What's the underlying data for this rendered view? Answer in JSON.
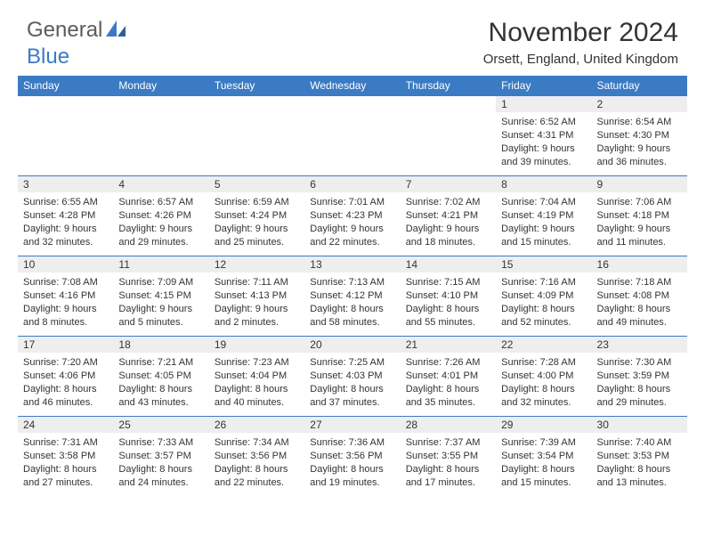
{
  "brand": {
    "part1": "General",
    "part2": "Blue"
  },
  "accent_color": "#3b7bc4",
  "title": "November 2024",
  "location": "Orsett, England, United Kingdom",
  "day_headers": [
    "Sunday",
    "Monday",
    "Tuesday",
    "Wednesday",
    "Thursday",
    "Friday",
    "Saturday"
  ],
  "weeks": [
    [
      {
        "n": "",
        "sr": "",
        "ss": "",
        "dl": ""
      },
      {
        "n": "",
        "sr": "",
        "ss": "",
        "dl": ""
      },
      {
        "n": "",
        "sr": "",
        "ss": "",
        "dl": ""
      },
      {
        "n": "",
        "sr": "",
        "ss": "",
        "dl": ""
      },
      {
        "n": "",
        "sr": "",
        "ss": "",
        "dl": ""
      },
      {
        "n": "1",
        "sr": "Sunrise: 6:52 AM",
        "ss": "Sunset: 4:31 PM",
        "dl": "Daylight: 9 hours and 39 minutes."
      },
      {
        "n": "2",
        "sr": "Sunrise: 6:54 AM",
        "ss": "Sunset: 4:30 PM",
        "dl": "Daylight: 9 hours and 36 minutes."
      }
    ],
    [
      {
        "n": "3",
        "sr": "Sunrise: 6:55 AM",
        "ss": "Sunset: 4:28 PM",
        "dl": "Daylight: 9 hours and 32 minutes."
      },
      {
        "n": "4",
        "sr": "Sunrise: 6:57 AM",
        "ss": "Sunset: 4:26 PM",
        "dl": "Daylight: 9 hours and 29 minutes."
      },
      {
        "n": "5",
        "sr": "Sunrise: 6:59 AM",
        "ss": "Sunset: 4:24 PM",
        "dl": "Daylight: 9 hours and 25 minutes."
      },
      {
        "n": "6",
        "sr": "Sunrise: 7:01 AM",
        "ss": "Sunset: 4:23 PM",
        "dl": "Daylight: 9 hours and 22 minutes."
      },
      {
        "n": "7",
        "sr": "Sunrise: 7:02 AM",
        "ss": "Sunset: 4:21 PM",
        "dl": "Daylight: 9 hours and 18 minutes."
      },
      {
        "n": "8",
        "sr": "Sunrise: 7:04 AM",
        "ss": "Sunset: 4:19 PM",
        "dl": "Daylight: 9 hours and 15 minutes."
      },
      {
        "n": "9",
        "sr": "Sunrise: 7:06 AM",
        "ss": "Sunset: 4:18 PM",
        "dl": "Daylight: 9 hours and 11 minutes."
      }
    ],
    [
      {
        "n": "10",
        "sr": "Sunrise: 7:08 AM",
        "ss": "Sunset: 4:16 PM",
        "dl": "Daylight: 9 hours and 8 minutes."
      },
      {
        "n": "11",
        "sr": "Sunrise: 7:09 AM",
        "ss": "Sunset: 4:15 PM",
        "dl": "Daylight: 9 hours and 5 minutes."
      },
      {
        "n": "12",
        "sr": "Sunrise: 7:11 AM",
        "ss": "Sunset: 4:13 PM",
        "dl": "Daylight: 9 hours and 2 minutes."
      },
      {
        "n": "13",
        "sr": "Sunrise: 7:13 AM",
        "ss": "Sunset: 4:12 PM",
        "dl": "Daylight: 8 hours and 58 minutes."
      },
      {
        "n": "14",
        "sr": "Sunrise: 7:15 AM",
        "ss": "Sunset: 4:10 PM",
        "dl": "Daylight: 8 hours and 55 minutes."
      },
      {
        "n": "15",
        "sr": "Sunrise: 7:16 AM",
        "ss": "Sunset: 4:09 PM",
        "dl": "Daylight: 8 hours and 52 minutes."
      },
      {
        "n": "16",
        "sr": "Sunrise: 7:18 AM",
        "ss": "Sunset: 4:08 PM",
        "dl": "Daylight: 8 hours and 49 minutes."
      }
    ],
    [
      {
        "n": "17",
        "sr": "Sunrise: 7:20 AM",
        "ss": "Sunset: 4:06 PM",
        "dl": "Daylight: 8 hours and 46 minutes."
      },
      {
        "n": "18",
        "sr": "Sunrise: 7:21 AM",
        "ss": "Sunset: 4:05 PM",
        "dl": "Daylight: 8 hours and 43 minutes."
      },
      {
        "n": "19",
        "sr": "Sunrise: 7:23 AM",
        "ss": "Sunset: 4:04 PM",
        "dl": "Daylight: 8 hours and 40 minutes."
      },
      {
        "n": "20",
        "sr": "Sunrise: 7:25 AM",
        "ss": "Sunset: 4:03 PM",
        "dl": "Daylight: 8 hours and 37 minutes."
      },
      {
        "n": "21",
        "sr": "Sunrise: 7:26 AM",
        "ss": "Sunset: 4:01 PM",
        "dl": "Daylight: 8 hours and 35 minutes."
      },
      {
        "n": "22",
        "sr": "Sunrise: 7:28 AM",
        "ss": "Sunset: 4:00 PM",
        "dl": "Daylight: 8 hours and 32 minutes."
      },
      {
        "n": "23",
        "sr": "Sunrise: 7:30 AM",
        "ss": "Sunset: 3:59 PM",
        "dl": "Daylight: 8 hours and 29 minutes."
      }
    ],
    [
      {
        "n": "24",
        "sr": "Sunrise: 7:31 AM",
        "ss": "Sunset: 3:58 PM",
        "dl": "Daylight: 8 hours and 27 minutes."
      },
      {
        "n": "25",
        "sr": "Sunrise: 7:33 AM",
        "ss": "Sunset: 3:57 PM",
        "dl": "Daylight: 8 hours and 24 minutes."
      },
      {
        "n": "26",
        "sr": "Sunrise: 7:34 AM",
        "ss": "Sunset: 3:56 PM",
        "dl": "Daylight: 8 hours and 22 minutes."
      },
      {
        "n": "27",
        "sr": "Sunrise: 7:36 AM",
        "ss": "Sunset: 3:56 PM",
        "dl": "Daylight: 8 hours and 19 minutes."
      },
      {
        "n": "28",
        "sr": "Sunrise: 7:37 AM",
        "ss": "Sunset: 3:55 PM",
        "dl": "Daylight: 8 hours and 17 minutes."
      },
      {
        "n": "29",
        "sr": "Sunrise: 7:39 AM",
        "ss": "Sunset: 3:54 PM",
        "dl": "Daylight: 8 hours and 15 minutes."
      },
      {
        "n": "30",
        "sr": "Sunrise: 7:40 AM",
        "ss": "Sunset: 3:53 PM",
        "dl": "Daylight: 8 hours and 13 minutes."
      }
    ]
  ]
}
